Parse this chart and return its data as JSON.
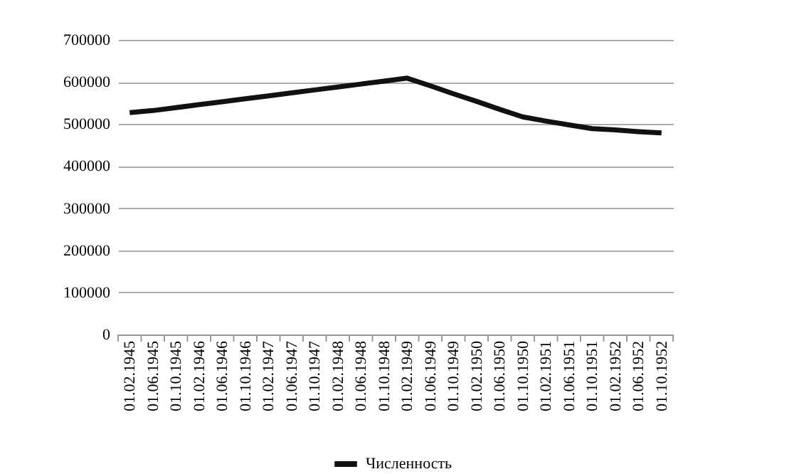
{
  "chart_data": {
    "type": "line",
    "categories": [
      "01.02.1945",
      "01.06.1945",
      "01.10.1945",
      "01.02.1946",
      "01.06.1946",
      "01.10.1946",
      "01.02.1947",
      "01.06.1947",
      "01.10.1947",
      "01.02.1948",
      "01.06.1948",
      "01.10.1948",
      "01.02.1949",
      "01.06.1949",
      "01.10.1949",
      "01.02.1950",
      "01.06.1950",
      "01.10.1950",
      "01.02.1951",
      "01.06.1951",
      "01.10.1951",
      "01.02.1952",
      "01.06.1952",
      "01.10.1952"
    ],
    "series": [
      {
        "name": "Численность",
        "color": "#111111",
        "values": [
          527000,
          532000,
          539000,
          546000,
          553000,
          560000,
          567000,
          574000,
          581000,
          588000,
          595000,
          602000,
          609000,
          591000,
          572000,
          554000,
          535000,
          517000,
          507000,
          498000,
          489000,
          486000,
          482000,
          479000
        ]
      }
    ],
    "ylim": [
      0,
      700000
    ],
    "yticks": [
      0,
      100000,
      200000,
      300000,
      400000,
      500000,
      600000,
      700000
    ],
    "grid": "y",
    "legend": "bottom",
    "marker": "none",
    "line_style": "solid"
  }
}
